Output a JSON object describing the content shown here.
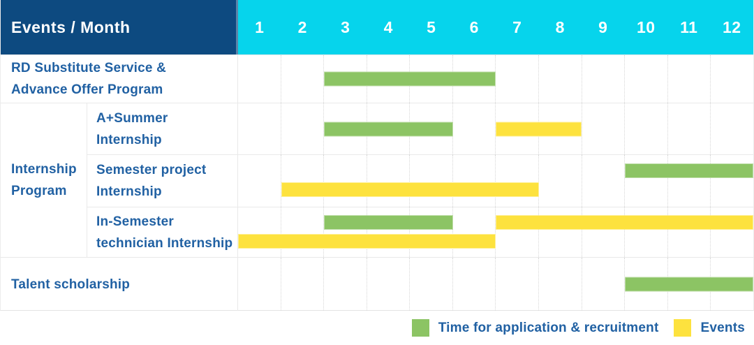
{
  "header": {
    "title": "Events / Month",
    "months": [
      "1",
      "2",
      "3",
      "4",
      "5",
      "6",
      "7",
      "8",
      "9",
      "10",
      "11",
      "12"
    ]
  },
  "colors": {
    "header_navy": "#0d4a80",
    "header_cyan": "#06d4ec",
    "green": "#8cc464",
    "yellow": "#fde23e",
    "label_blue": "#2161a3"
  },
  "group": {
    "label": "Internship Program",
    "label_lines": [
      "Internship",
      "Program"
    ]
  },
  "chart_data": {
    "type": "bar",
    "subtype": "gantt-timeline",
    "title": "Events / Month",
    "x_axis": {
      "label": "Month",
      "ticks": [
        1,
        2,
        3,
        4,
        5,
        6,
        7,
        8,
        9,
        10,
        11,
        12
      ],
      "range": [
        1,
        12
      ]
    },
    "grid": "dotted vertical month lines, solid row separators",
    "legend_position": "bottom-right",
    "series_colors": {
      "Time for application & recruitment": "#8cc464",
      "Events": "#fde23e"
    },
    "rows": [
      {
        "group": null,
        "label": "RD Substitute Service & Advance Offer Program",
        "label_lines": [
          "RD Substitute Service &",
          "Advance Offer Program"
        ],
        "bars": [
          {
            "series": "Time for application & recruitment",
            "start_month": 3,
            "end_month": 6,
            "lane": "mid"
          }
        ]
      },
      {
        "group": "Internship Program",
        "label": "A+Summer Internship",
        "label_lines": [
          "A+Summer",
          "Internship"
        ],
        "bars": [
          {
            "series": "Time for application & recruitment",
            "start_month": 3,
            "end_month": 5,
            "lane": "mid"
          },
          {
            "series": "Events",
            "start_month": 7,
            "end_month": 8,
            "lane": "mid"
          }
        ]
      },
      {
        "group": "Internship Program",
        "label": "Semester project Internship",
        "label_lines": [
          "Semester project",
          "Internship"
        ],
        "bars": [
          {
            "series": "Time for application & recruitment",
            "start_month": 10,
            "end_month": 12,
            "lane": "upper"
          },
          {
            "series": "Events",
            "start_month": 2,
            "end_month": 7,
            "lane": "lower"
          }
        ]
      },
      {
        "group": "Internship Program",
        "label": "In-Semester technician Internship",
        "label_lines": [
          "In-Semester",
          "technician Internship"
        ],
        "bars": [
          {
            "series": "Time for application & recruitment",
            "start_month": 3,
            "end_month": 5,
            "lane": "upper"
          },
          {
            "series": "Events",
            "start_month": 7,
            "end_month": 12,
            "lane": "upper"
          },
          {
            "series": "Events",
            "start_month": 1,
            "end_month": 6,
            "lane": "lower"
          }
        ]
      },
      {
        "group": null,
        "label": "Talent scholarship",
        "label_lines": [
          "Talent scholarship"
        ],
        "bars": [
          {
            "series": "Time for application & recruitment",
            "start_month": 10,
            "end_month": 12,
            "lane": "mid"
          }
        ]
      }
    ]
  },
  "legend": {
    "items": [
      {
        "series": "Time for application & recruitment",
        "label": "Time for application & recruitment",
        "color": "#8cc464"
      },
      {
        "series": "Events",
        "label": "Events",
        "color": "#fde23e"
      }
    ]
  }
}
